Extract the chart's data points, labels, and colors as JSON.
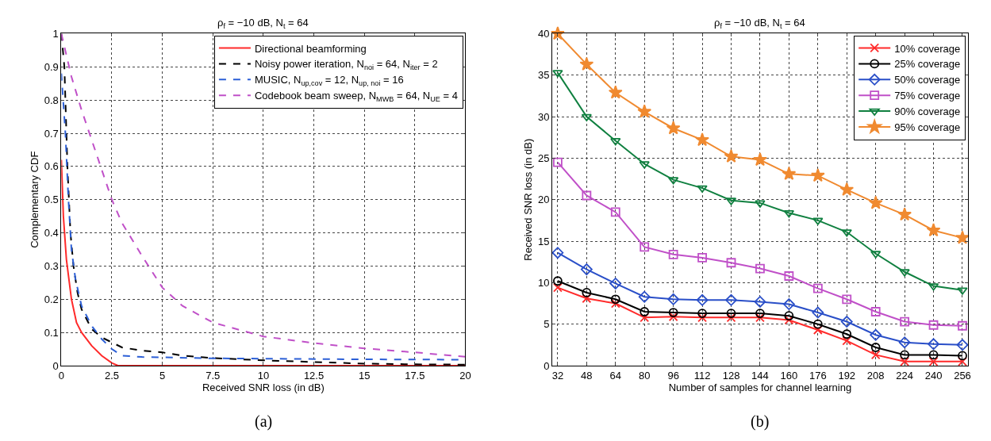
{
  "chart_data": [
    {
      "type": "line",
      "title": "ρ$_{f}$ = −10 dB, N$_{t}$ = 64",
      "xlabel": "Received SNR loss (in dB)",
      "ylabel": "Complementary CDF",
      "annotations": [
        "(a)"
      ],
      "xlim": [
        0,
        20
      ],
      "xticks": [
        0,
        2.5,
        5,
        7.5,
        10,
        12.5,
        15,
        17.5,
        20
      ],
      "ylim": [
        0,
        1
      ],
      "yticks": [
        0,
        0.1,
        0.2,
        0.3,
        0.4,
        0.5,
        0.6,
        0.7,
        0.8,
        0.9,
        1
      ],
      "grid": true,
      "legend": "top right",
      "marker": "none",
      "series": [
        {
          "name": "Directional beamforming",
          "color": "#ff2a2a",
          "line_style": "solid",
          "x": [
            0,
            0.1,
            0.25,
            0.5,
            0.75,
            1,
            1.5,
            2,
            2.5,
            2.8,
            3,
            20
          ],
          "values": [
            0.62,
            0.45,
            0.32,
            0.2,
            0.13,
            0.1,
            0.06,
            0.03,
            0.008,
            0,
            0,
            0
          ]
        },
        {
          "name": "Noisy power iteration, N$_{noi}$ = 64, N$_{iter}$ = 2",
          "color": "#000000",
          "line_style": "dashed",
          "x": [
            0,
            0.15,
            0.3,
            0.45,
            0.6,
            0.8,
            1,
            1.5,
            2,
            2.5,
            3,
            4,
            5,
            6,
            7.5,
            10,
            12.5,
            15,
            17.5,
            20
          ],
          "values": [
            1,
            0.9,
            0.6,
            0.4,
            0.3,
            0.22,
            0.17,
            0.11,
            0.085,
            0.07,
            0.055,
            0.045,
            0.04,
            0.03,
            0.023,
            0.016,
            0.011,
            0.006,
            0.004,
            0.003
          ]
        },
        {
          "name": "MUSIC, N$_{up,cov}$ = 12, N$_{up, noi}$ = 16",
          "color": "#2c5fd6",
          "line_style": "dashed",
          "x": [
            0,
            0.2,
            0.35,
            0.5,
            0.7,
            1,
            1.5,
            2,
            2.5,
            3,
            4,
            5,
            7.5,
            10,
            15,
            20
          ],
          "values": [
            0.88,
            0.7,
            0.5,
            0.35,
            0.26,
            0.18,
            0.12,
            0.08,
            0.05,
            0.03,
            0.026,
            0.025,
            0.022,
            0.021,
            0.019,
            0.018
          ]
        },
        {
          "name": "Codebook beam sweep, N$_{MWB}$ = 64, N$_{UE}$ = 4",
          "color": "#c050c8",
          "line_style": "dashed",
          "x": [
            0,
            0.5,
            1,
            2,
            2.5,
            3,
            4,
            5,
            6,
            7.5,
            10,
            12.5,
            15,
            17.5,
            20
          ],
          "values": [
            1,
            0.87,
            0.77,
            0.59,
            0.5,
            0.43,
            0.33,
            0.235,
            0.18,
            0.13,
            0.088,
            0.068,
            0.052,
            0.04,
            0.027
          ]
        }
      ]
    },
    {
      "type": "line",
      "title": "ρ$_{f}$ = −10 dB, N$_{t}$ = 64",
      "xlabel": "Number of samples for channel learning",
      "ylabel": "Received SNR loss (in dB)",
      "annotations": [
        "(b)"
      ],
      "x": [
        32,
        48,
        64,
        80,
        96,
        112,
        128,
        144,
        160,
        176,
        192,
        208,
        224,
        240,
        256
      ],
      "xlim": [
        29,
        259
      ],
      "xticks": [
        32,
        48,
        64,
        80,
        96,
        112,
        128,
        144,
        160,
        176,
        192,
        208,
        224,
        240,
        256
      ],
      "ylim": [
        0,
        40
      ],
      "yticks": [
        0,
        5,
        10,
        15,
        20,
        25,
        30,
        35,
        40
      ],
      "grid": true,
      "legend": "top right",
      "line_style": "solid",
      "series": [
        {
          "name": "10% coverage",
          "color": "#ff2a2a",
          "marker": "cross",
          "values": [
            9.4,
            8.1,
            7.5,
            5.8,
            5.9,
            5.8,
            5.8,
            5.8,
            5.5,
            4.3,
            3.0,
            1.3,
            0.5,
            0.5,
            0.5
          ]
        },
        {
          "name": "25% coverage",
          "color": "#000000",
          "marker": "circle",
          "values": [
            10.2,
            8.8,
            8.0,
            6.5,
            6.4,
            6.3,
            6.3,
            6.3,
            6.0,
            5.0,
            3.8,
            2.2,
            1.3,
            1.3,
            1.2
          ]
        },
        {
          "name": "50% coverage",
          "color": "#2a4fc8",
          "marker": "diamond",
          "values": [
            13.6,
            11.6,
            9.9,
            8.3,
            8.0,
            7.9,
            7.9,
            7.7,
            7.4,
            6.4,
            5.3,
            3.7,
            2.8,
            2.6,
            2.5
          ]
        },
        {
          "name": "75% coverage",
          "color": "#c050c8",
          "marker": "square",
          "values": [
            24.5,
            20.5,
            18.5,
            14.3,
            13.4,
            13.0,
            12.4,
            11.7,
            10.8,
            9.3,
            8.0,
            6.5,
            5.3,
            4.9,
            4.8
          ]
        },
        {
          "name": "90% coverage",
          "color": "#108040",
          "marker": "triangle",
          "values": [
            35.3,
            30.0,
            27.1,
            24.3,
            22.4,
            21.4,
            19.9,
            19.6,
            18.4,
            17.5,
            16.1,
            13.5,
            11.3,
            9.6,
            9.1
          ]
        },
        {
          "name": "95% coverage",
          "color": "#f08a30",
          "marker": "star",
          "values": [
            40,
            36.3,
            32.9,
            30.6,
            28.6,
            27.2,
            25.2,
            24.8,
            23.1,
            22.9,
            21.2,
            19.6,
            18.2,
            16.3,
            15.4
          ]
        }
      ]
    }
  ]
}
